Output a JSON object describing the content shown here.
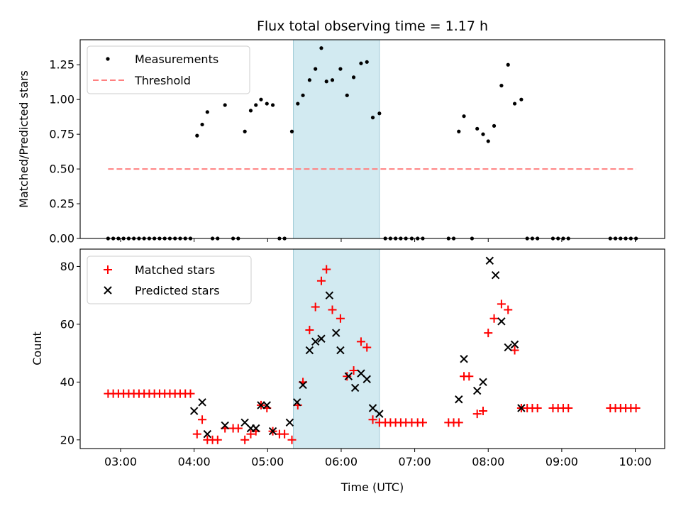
{
  "title": "Flux total observing time = 1.17 h",
  "colors": {
    "threshold": "#ff8080",
    "matched": "#ff0000",
    "predicted": "#000000",
    "span": "#add8e6",
    "measurements": "#000000"
  },
  "chart_data": [
    {
      "type": "scatter",
      "ylabel": "Matched/Predicted stars",
      "xlim": [
        2.45,
        10.4
      ],
      "ylim": [
        0,
        1.43
      ],
      "yticks": [
        "0.00",
        "0.25",
        "0.50",
        "0.75",
        "1.00",
        "1.25"
      ],
      "ytick_values": [
        0,
        0.25,
        0.5,
        0.75,
        1.0,
        1.25
      ],
      "xticks_visible": false,
      "legend": {
        "placement": "top-left",
        "entries": [
          "Measurements",
          "Threshold"
        ]
      },
      "highlight_span": [
        5.35,
        6.52
      ],
      "series": [
        {
          "name": "Measurements",
          "marker": "dot",
          "points": [
            [
              2.83,
              0
            ],
            [
              2.9,
              0
            ],
            [
              2.97,
              0
            ],
            [
              3.04,
              0
            ],
            [
              3.11,
              0
            ],
            [
              3.18,
              0
            ],
            [
              3.25,
              0
            ],
            [
              3.32,
              0
            ],
            [
              3.39,
              0
            ],
            [
              3.46,
              0
            ],
            [
              3.53,
              0
            ],
            [
              3.6,
              0
            ],
            [
              3.67,
              0
            ],
            [
              3.74,
              0
            ],
            [
              3.81,
              0
            ],
            [
              3.88,
              0
            ],
            [
              3.95,
              0
            ],
            [
              4.04,
              0.74
            ],
            [
              4.11,
              0.82
            ],
            [
              4.18,
              0.91
            ],
            [
              4.25,
              0
            ],
            [
              4.32,
              0
            ],
            [
              4.42,
              0.96
            ],
            [
              4.53,
              0
            ],
            [
              4.6,
              0
            ],
            [
              4.69,
              0.77
            ],
            [
              4.77,
              0.92
            ],
            [
              4.84,
              0.96
            ],
            [
              4.91,
              1.0
            ],
            [
              4.99,
              0.97
            ],
            [
              5.07,
              0.96
            ],
            [
              5.16,
              0
            ],
            [
              5.23,
              0
            ],
            [
              5.33,
              0.77
            ],
            [
              5.41,
              0.97
            ],
            [
              5.48,
              1.03
            ],
            [
              5.57,
              1.14
            ],
            [
              5.65,
              1.22
            ],
            [
              5.73,
              1.37
            ],
            [
              5.8,
              1.13
            ],
            [
              5.88,
              1.14
            ],
            [
              5.99,
              1.22
            ],
            [
              6.08,
              1.03
            ],
            [
              6.17,
              1.16
            ],
            [
              6.27,
              1.26
            ],
            [
              6.35,
              1.27
            ],
            [
              6.43,
              0.87
            ],
            [
              6.52,
              0.9
            ],
            [
              6.6,
              0
            ],
            [
              6.67,
              0
            ],
            [
              6.74,
              0
            ],
            [
              6.81,
              0
            ],
            [
              6.88,
              0
            ],
            [
              6.96,
              0
            ],
            [
              7.04,
              0
            ],
            [
              7.11,
              0
            ],
            [
              7.46,
              0
            ],
            [
              7.53,
              0
            ],
            [
              7.6,
              0.77
            ],
            [
              7.67,
              0.88
            ],
            [
              7.78,
              0
            ],
            [
              7.85,
              0.79
            ],
            [
              7.93,
              0.75
            ],
            [
              8.0,
              0.7
            ],
            [
              8.08,
              0.81
            ],
            [
              8.18,
              1.1
            ],
            [
              8.27,
              1.25
            ],
            [
              8.36,
              0.97
            ],
            [
              8.45,
              1.0
            ],
            [
              8.53,
              0
            ],
            [
              8.6,
              0
            ],
            [
              8.67,
              0
            ],
            [
              8.88,
              0
            ],
            [
              8.95,
              0
            ],
            [
              9.02,
              0
            ],
            [
              9.09,
              0
            ],
            [
              9.66,
              0
            ],
            [
              9.73,
              0
            ],
            [
              9.8,
              0
            ],
            [
              9.87,
              0
            ],
            [
              9.94,
              0
            ],
            [
              10.01,
              0
            ]
          ]
        },
        {
          "name": "Threshold",
          "style": "dashed",
          "points": [
            [
              2.83,
              0.5
            ],
            [
              10.01,
              0.5
            ]
          ]
        }
      ]
    },
    {
      "type": "scatter",
      "ylabel": "Count",
      "xlabel": "Time (UTC)",
      "xlim": [
        2.45,
        10.4
      ],
      "ylim": [
        17,
        86
      ],
      "yticks": [
        "20",
        "40",
        "60",
        "80"
      ],
      "ytick_values": [
        20,
        40,
        60,
        80
      ],
      "xticks": [
        "03:00",
        "04:00",
        "05:00",
        "06:00",
        "07:00",
        "08:00",
        "09:00",
        "10:00"
      ],
      "xtick_values": [
        3,
        4,
        5,
        6,
        7,
        8,
        9,
        10
      ],
      "legend": {
        "placement": "top-left",
        "entries": [
          "Matched stars",
          "Predicted stars"
        ]
      },
      "highlight_span": [
        5.35,
        6.52
      ],
      "series": [
        {
          "name": "Matched stars",
          "marker": "plus",
          "points": [
            [
              2.83,
              36
            ],
            [
              2.9,
              36
            ],
            [
              2.97,
              36
            ],
            [
              3.04,
              36
            ],
            [
              3.11,
              36
            ],
            [
              3.18,
              36
            ],
            [
              3.25,
              36
            ],
            [
              3.32,
              36
            ],
            [
              3.39,
              36
            ],
            [
              3.46,
              36
            ],
            [
              3.53,
              36
            ],
            [
              3.6,
              36
            ],
            [
              3.67,
              36
            ],
            [
              3.74,
              36
            ],
            [
              3.81,
              36
            ],
            [
              3.88,
              36
            ],
            [
              3.95,
              36
            ],
            [
              4.04,
              22
            ],
            [
              4.11,
              27
            ],
            [
              4.18,
              20
            ],
            [
              4.25,
              20
            ],
            [
              4.32,
              20
            ],
            [
              4.42,
              24
            ],
            [
              4.53,
              24
            ],
            [
              4.6,
              24
            ],
            [
              4.69,
              20
            ],
            [
              4.77,
              22
            ],
            [
              4.84,
              23
            ],
            [
              4.91,
              32
            ],
            [
              4.99,
              31
            ],
            [
              5.07,
              23
            ],
            [
              5.16,
              22
            ],
            [
              5.23,
              22
            ],
            [
              5.33,
              20
            ],
            [
              5.41,
              32
            ],
            [
              5.48,
              40
            ],
            [
              5.57,
              58
            ],
            [
              5.65,
              66
            ],
            [
              5.73,
              75
            ],
            [
              5.8,
              79
            ],
            [
              5.88,
              65
            ],
            [
              5.99,
              62
            ],
            [
              6.08,
              42
            ],
            [
              6.17,
              44
            ],
            [
              6.27,
              54
            ],
            [
              6.35,
              52
            ],
            [
              6.43,
              27
            ],
            [
              6.52,
              26
            ],
            [
              6.6,
              26
            ],
            [
              6.67,
              26
            ],
            [
              6.74,
              26
            ],
            [
              6.81,
              26
            ],
            [
              6.88,
              26
            ],
            [
              6.96,
              26
            ],
            [
              7.04,
              26
            ],
            [
              7.11,
              26
            ],
            [
              7.46,
              26
            ],
            [
              7.53,
              26
            ],
            [
              7.6,
              26
            ],
            [
              7.67,
              42
            ],
            [
              7.74,
              42
            ],
            [
              7.85,
              29
            ],
            [
              7.93,
              30
            ],
            [
              8.0,
              57
            ],
            [
              8.08,
              62
            ],
            [
              8.18,
              67
            ],
            [
              8.27,
              65
            ],
            [
              8.36,
              51
            ],
            [
              8.45,
              31
            ],
            [
              8.53,
              31
            ],
            [
              8.6,
              31
            ],
            [
              8.67,
              31
            ],
            [
              8.88,
              31
            ],
            [
              8.95,
              31
            ],
            [
              9.02,
              31
            ],
            [
              9.09,
              31
            ],
            [
              9.66,
              31
            ],
            [
              9.73,
              31
            ],
            [
              9.8,
              31
            ],
            [
              9.87,
              31
            ],
            [
              9.94,
              31
            ],
            [
              10.01,
              31
            ]
          ]
        },
        {
          "name": "Predicted stars",
          "marker": "x",
          "points": [
            [
              4.0,
              30
            ],
            [
              4.11,
              33
            ],
            [
              4.18,
              22
            ],
            [
              4.42,
              25
            ],
            [
              4.69,
              26
            ],
            [
              4.77,
              24
            ],
            [
              4.84,
              24
            ],
            [
              4.91,
              32
            ],
            [
              4.99,
              32
            ],
            [
              5.07,
              23
            ],
            [
              5.3,
              26
            ],
            [
              5.4,
              33
            ],
            [
              5.48,
              39
            ],
            [
              5.57,
              51
            ],
            [
              5.65,
              54
            ],
            [
              5.73,
              55
            ],
            [
              5.84,
              70
            ],
            [
              5.93,
              57
            ],
            [
              5.99,
              51
            ],
            [
              6.1,
              42
            ],
            [
              6.19,
              38
            ],
            [
              6.27,
              43
            ],
            [
              6.35,
              41
            ],
            [
              6.43,
              31
            ],
            [
              6.52,
              29
            ],
            [
              7.6,
              34
            ],
            [
              7.67,
              48
            ],
            [
              7.85,
              37
            ],
            [
              7.93,
              40
            ],
            [
              8.02,
              82
            ],
            [
              8.1,
              77
            ],
            [
              8.18,
              61
            ],
            [
              8.27,
              52
            ],
            [
              8.36,
              53
            ],
            [
              8.45,
              31
            ]
          ]
        }
      ]
    }
  ]
}
